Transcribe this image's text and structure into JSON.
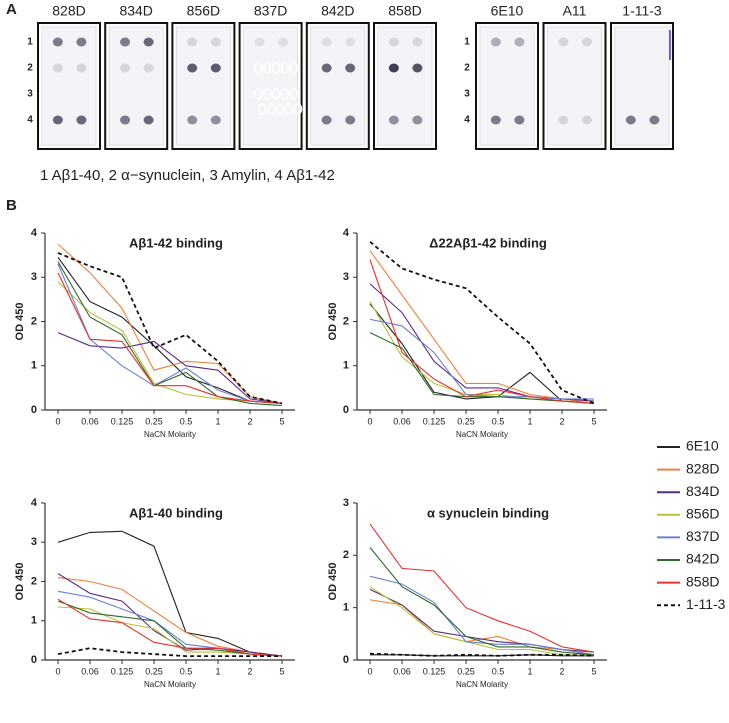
{
  "panel_a": {
    "label": "A",
    "strips_left": [
      "828D",
      "834D",
      "856D",
      "837D",
      "842D",
      "858D"
    ],
    "strips_right": [
      "6E10",
      "A11",
      "1-11-3"
    ],
    "row_labels": [
      "1",
      "2",
      "3",
      "4"
    ],
    "caption": "1 Aβ1-40, 2 α−synuclein, 3 Amylin, 4 Aβ1-42"
  },
  "panel_b": {
    "label": "B"
  },
  "chart_data": [
    {
      "type": "line",
      "title": "Aβ1-42 binding",
      "x_label": "NaCN Molarity",
      "y_label": "OD 450",
      "categories": [
        "0",
        "0.06",
        "0.125",
        "0.25",
        "0.5",
        "1",
        "2",
        "5"
      ],
      "ylim": [
        0,
        4
      ],
      "yticks": [
        0,
        1,
        2,
        3,
        4
      ],
      "series": [
        {
          "name": "6E10",
          "color": "#222222",
          "values": [
            3.45,
            2.45,
            2.1,
            1.45,
            0.75,
            0.5,
            0.2,
            0.15
          ]
        },
        {
          "name": "828D",
          "color": "#f07f3c",
          "values": [
            3.75,
            3.1,
            2.3,
            0.9,
            1.1,
            1.05,
            0.3,
            0.15
          ]
        },
        {
          "name": "834D",
          "color": "#5b2c83",
          "values": [
            1.75,
            1.45,
            1.4,
            1.55,
            1.0,
            0.9,
            0.25,
            0.15
          ]
        },
        {
          "name": "856D",
          "color": "#b8c234",
          "values": [
            2.9,
            2.2,
            1.8,
            0.6,
            0.35,
            0.25,
            0.2,
            0.15
          ]
        },
        {
          "name": "837D",
          "color": "#6b80d2",
          "values": [
            3.3,
            1.6,
            1.0,
            0.55,
            0.95,
            0.45,
            0.2,
            0.15
          ]
        },
        {
          "name": "842D",
          "color": "#2e6b2e",
          "values": [
            3.35,
            2.1,
            1.7,
            0.55,
            0.85,
            0.3,
            0.15,
            0.1
          ]
        },
        {
          "name": "858D",
          "color": "#e83030",
          "values": [
            3.1,
            1.6,
            1.55,
            0.55,
            0.55,
            0.3,
            0.2,
            0.15
          ]
        },
        {
          "name": "1-11-3",
          "color": "#111111",
          "style": "dashed",
          "values": [
            3.55,
            3.25,
            3.0,
            1.4,
            1.7,
            1.1,
            0.3,
            0.15
          ]
        }
      ]
    },
    {
      "type": "line",
      "title": "Δ22Aβ1-42 binding",
      "x_label": "NaCN Molarity",
      "y_label": "OD 450",
      "categories": [
        "0",
        "0.06",
        "0.125",
        "0.25",
        "0.5",
        "1",
        "2",
        "5"
      ],
      "ylim": [
        0,
        4
      ],
      "yticks": [
        0,
        1,
        2,
        3,
        4
      ],
      "series": [
        {
          "name": "6E10",
          "color": "#222222",
          "values": [
            2.4,
            1.5,
            0.4,
            0.25,
            0.3,
            0.85,
            0.2,
            0.15
          ]
        },
        {
          "name": "828D",
          "color": "#f07f3c",
          "values": [
            3.6,
            2.6,
            1.6,
            0.6,
            0.6,
            0.35,
            0.25,
            0.15
          ]
        },
        {
          "name": "834D",
          "color": "#5b2c83",
          "values": [
            2.85,
            2.2,
            1.1,
            0.5,
            0.5,
            0.3,
            0.25,
            0.2
          ]
        },
        {
          "name": "856D",
          "color": "#b8c234",
          "values": [
            2.45,
            1.2,
            0.6,
            0.35,
            0.35,
            0.25,
            0.2,
            0.15
          ]
        },
        {
          "name": "837D",
          "color": "#6b80d2",
          "values": [
            2.05,
            1.9,
            1.3,
            0.35,
            0.3,
            0.3,
            0.25,
            0.25
          ]
        },
        {
          "name": "842D",
          "color": "#2e6b2e",
          "values": [
            1.75,
            1.4,
            0.35,
            0.3,
            0.3,
            0.25,
            0.2,
            0.15
          ]
        },
        {
          "name": "858D",
          "color": "#e83030",
          "values": [
            3.4,
            1.3,
            0.7,
            0.3,
            0.45,
            0.3,
            0.2,
            0.15
          ]
        },
        {
          "name": "1-11-3",
          "color": "#111111",
          "style": "dashed",
          "values": [
            3.8,
            3.2,
            2.95,
            2.75,
            2.1,
            1.5,
            0.45,
            0.15
          ]
        }
      ]
    },
    {
      "type": "line",
      "title": "Aβ1-40 binding",
      "x_label": "NaCN Molarity",
      "y_label": "OD 450",
      "categories": [
        "0",
        "0.06",
        "0.125",
        "0.25",
        "0.5",
        "1",
        "2",
        "5"
      ],
      "ylim": [
        0,
        4
      ],
      "yticks": [
        0,
        1,
        2,
        3,
        4
      ],
      "series": [
        {
          "name": "6E10",
          "color": "#222222",
          "values": [
            3.0,
            3.25,
            3.28,
            2.9,
            0.7,
            0.55,
            0.2,
            0.1
          ]
        },
        {
          "name": "828D",
          "color": "#f07f3c",
          "values": [
            2.1,
            2.0,
            1.8,
            1.25,
            0.7,
            0.35,
            0.2,
            0.1
          ]
        },
        {
          "name": "834D",
          "color": "#5b2c83",
          "values": [
            2.2,
            1.7,
            1.5,
            0.75,
            0.25,
            0.3,
            0.2,
            0.1
          ]
        },
        {
          "name": "856D",
          "color": "#b8c234",
          "values": [
            1.35,
            1.3,
            0.95,
            0.8,
            0.2,
            0.2,
            0.15,
            0.1
          ]
        },
        {
          "name": "837D",
          "color": "#6b80d2",
          "values": [
            1.75,
            1.6,
            1.3,
            1.0,
            0.4,
            0.3,
            0.15,
            0.1
          ]
        },
        {
          "name": "842D",
          "color": "#2e6b2e",
          "values": [
            1.5,
            1.2,
            1.1,
            1.0,
            0.3,
            0.25,
            0.15,
            0.1
          ]
        },
        {
          "name": "858D",
          "color": "#e83030",
          "values": [
            1.55,
            1.05,
            0.95,
            0.45,
            0.3,
            0.3,
            0.15,
            0.1
          ]
        },
        {
          "name": "1-11-3",
          "color": "#111111",
          "style": "dashed",
          "values": [
            0.15,
            0.3,
            0.2,
            0.15,
            0.1,
            0.1,
            0.1,
            0.1
          ]
        }
      ]
    },
    {
      "type": "line",
      "title": "α synuclein binding",
      "x_label": "NaCN Molarity",
      "y_label": "OD 450",
      "categories": [
        "0",
        "0.06",
        "0.125",
        "0.25",
        "0.5",
        "1",
        "2",
        "5"
      ],
      "ylim": [
        0,
        3
      ],
      "yticks": [
        0,
        1,
        2,
        3
      ],
      "series": [
        {
          "name": "6E10",
          "color": "#222222",
          "values": [
            0.1,
            0.1,
            0.08,
            0.08,
            0.08,
            0.1,
            0.08,
            0.08
          ]
        },
        {
          "name": "828D",
          "color": "#f07f3c",
          "values": [
            1.15,
            1.05,
            0.5,
            0.35,
            0.45,
            0.25,
            0.2,
            0.1
          ]
        },
        {
          "name": "834D",
          "color": "#5b2c83",
          "values": [
            1.35,
            1.05,
            0.55,
            0.45,
            0.35,
            0.3,
            0.2,
            0.15
          ]
        },
        {
          "name": "856D",
          "color": "#b8c234",
          "values": [
            1.4,
            1.0,
            0.5,
            0.35,
            0.2,
            0.2,
            0.1,
            0.1
          ]
        },
        {
          "name": "837D",
          "color": "#6b80d2",
          "values": [
            1.6,
            1.45,
            1.1,
            0.35,
            0.3,
            0.3,
            0.2,
            0.1
          ]
        },
        {
          "name": "842D",
          "color": "#2e6b2e",
          "values": [
            2.15,
            1.4,
            1.05,
            0.45,
            0.25,
            0.25,
            0.15,
            0.1
          ]
        },
        {
          "name": "858D",
          "color": "#e83030",
          "values": [
            2.6,
            1.75,
            1.7,
            1.0,
            0.75,
            0.55,
            0.25,
            0.15
          ]
        },
        {
          "name": "1-11-3",
          "color": "#111111",
          "style": "dashed",
          "values": [
            0.12,
            0.1,
            0.08,
            0.1,
            0.08,
            0.1,
            0.1,
            0.08
          ]
        }
      ]
    }
  ]
}
